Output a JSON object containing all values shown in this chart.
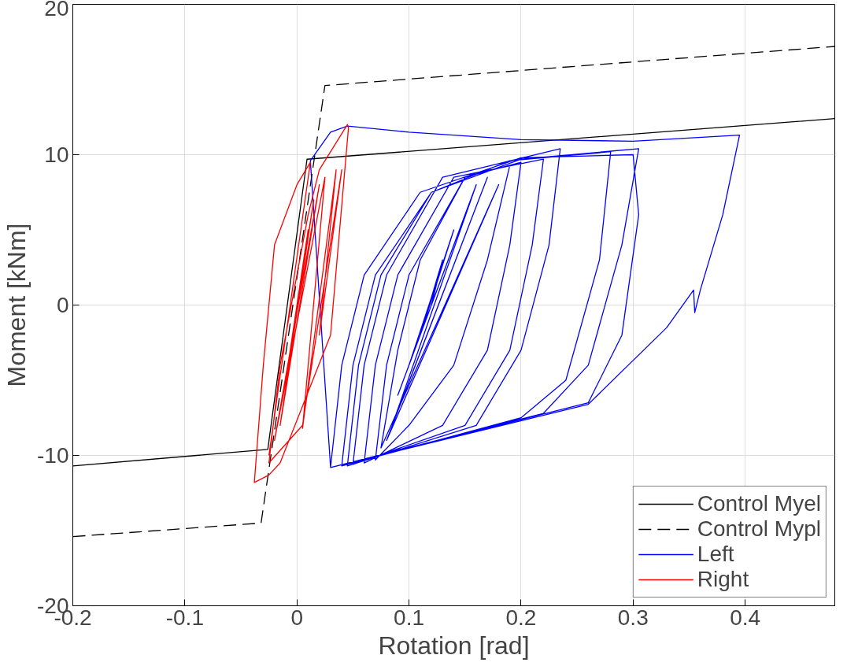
{
  "chart_data": {
    "type": "line",
    "xlabel": "Rotation [rad]",
    "ylabel": "Moment [kNm]",
    "xlim": [
      -0.2,
      0.48
    ],
    "ylim": [
      -20,
      20
    ],
    "xticks": [
      -0.2,
      -0.1,
      0,
      0.1,
      0.2,
      0.3,
      0.4
    ],
    "yticks": [
      -20,
      -10,
      0,
      10,
      20
    ],
    "grid": true,
    "legend": "bottom right",
    "series": [
      {
        "name": "Control Myel",
        "color": "#000000",
        "line_style": "solid",
        "x": [
          -0.2,
          -0.026,
          0.009,
          0.48
        ],
        "values": [
          -10.7,
          -9.6,
          9.7,
          12.4
        ]
      },
      {
        "name": "Control Mypl",
        "color": "#000000",
        "line_style": "dashed",
        "x": [
          -0.2,
          -0.032,
          0.025,
          0.48
        ],
        "values": [
          -15.4,
          -14.5,
          14.6,
          17.2
        ]
      },
      {
        "name": "Left",
        "color": "#0000ff",
        "line_style": "solid",
        "x": [
          0.12,
          0.13,
          0.11,
          0.14,
          0.1,
          0.15,
          0.09,
          0.16,
          0.085,
          0.17,
          0.08,
          0.18,
          0.075,
          0.09,
          0.11,
          0.15,
          0.19,
          0.17,
          0.14,
          0.1,
          0.07,
          0.08,
          0.1,
          0.15,
          0.2,
          0.19,
          0.17,
          0.13,
          0.06,
          0.07,
          0.09,
          0.14,
          0.22,
          0.21,
          0.19,
          0.15,
          0.05,
          0.06,
          0.08,
          0.13,
          0.235,
          0.225,
          0.2,
          0.16,
          0.045,
          0.055,
          0.075,
          0.12,
          0.19,
          0.28,
          0.27,
          0.24,
          0.2,
          0.04,
          0.05,
          0.07,
          0.12,
          0.2,
          0.305,
          0.29,
          0.26,
          0.22,
          0.03,
          0.04,
          0.06,
          0.11,
          0.2,
          0.3,
          0.305,
          0.29,
          0.26,
          0.03,
          0.012,
          0.03,
          0.045,
          0.1,
          0.2,
          0.3,
          0.395,
          0.38,
          0.36,
          0.355,
          0.354,
          0.33,
          0.26,
          0.15,
          0.03
        ],
        "values": [
          0,
          3,
          -2,
          5,
          -4,
          6,
          -6,
          8,
          -8,
          8.5,
          -9,
          8,
          -9.5,
          -3,
          3,
          8.5,
          9.3,
          3,
          -4,
          -8,
          -10.3,
          -4,
          2,
          8.5,
          9.5,
          4,
          -3,
          -8,
          -10.5,
          -4,
          2,
          8.5,
          9.7,
          4,
          -3,
          -8,
          -10.6,
          -4,
          2,
          8.5,
          10.4,
          4,
          -3,
          -8,
          -10.7,
          -4,
          2,
          7.5,
          9.6,
          10.2,
          3,
          -5,
          -7.5,
          -10.7,
          -4,
          2,
          7.5,
          9.7,
          10.4,
          4,
          -4,
          -7.2,
          -10.8,
          -4,
          2,
          7.5,
          9.8,
          10,
          6,
          -2,
          -6.5,
          -10.8,
          9.6,
          11.5,
          11.9,
          11.5,
          11,
          10.9,
          11.3,
          6,
          1,
          -0.5,
          1,
          -1.5,
          -6.6,
          -8.6,
          -10.8
        ]
      },
      {
        "name": "Right",
        "color": "#ff0000",
        "line_style": "solid",
        "x": [
          0,
          0.01,
          -0.01,
          0.015,
          -0.015,
          0.02,
          -0.02,
          0.025,
          0.005,
          0.035,
          0.02,
          0.04,
          0.005,
          -0.025,
          -0.015,
          0.01,
          0.02,
          0.045,
          0.046,
          0.03,
          -0.015,
          -0.025,
          -0.038,
          -0.03,
          -0.02,
          0.0,
          0.012,
          -0.025
        ],
        "values": [
          0,
          5,
          -5,
          7,
          -8,
          8,
          -9,
          8.5,
          -8.2,
          9,
          -2,
          9,
          -8,
          -10.5,
          -4,
          6,
          9,
          12,
          11.8,
          -2,
          -10.5,
          -11.3,
          -11.8,
          -4,
          4,
          8,
          9.5,
          -10
        ]
      }
    ]
  }
}
